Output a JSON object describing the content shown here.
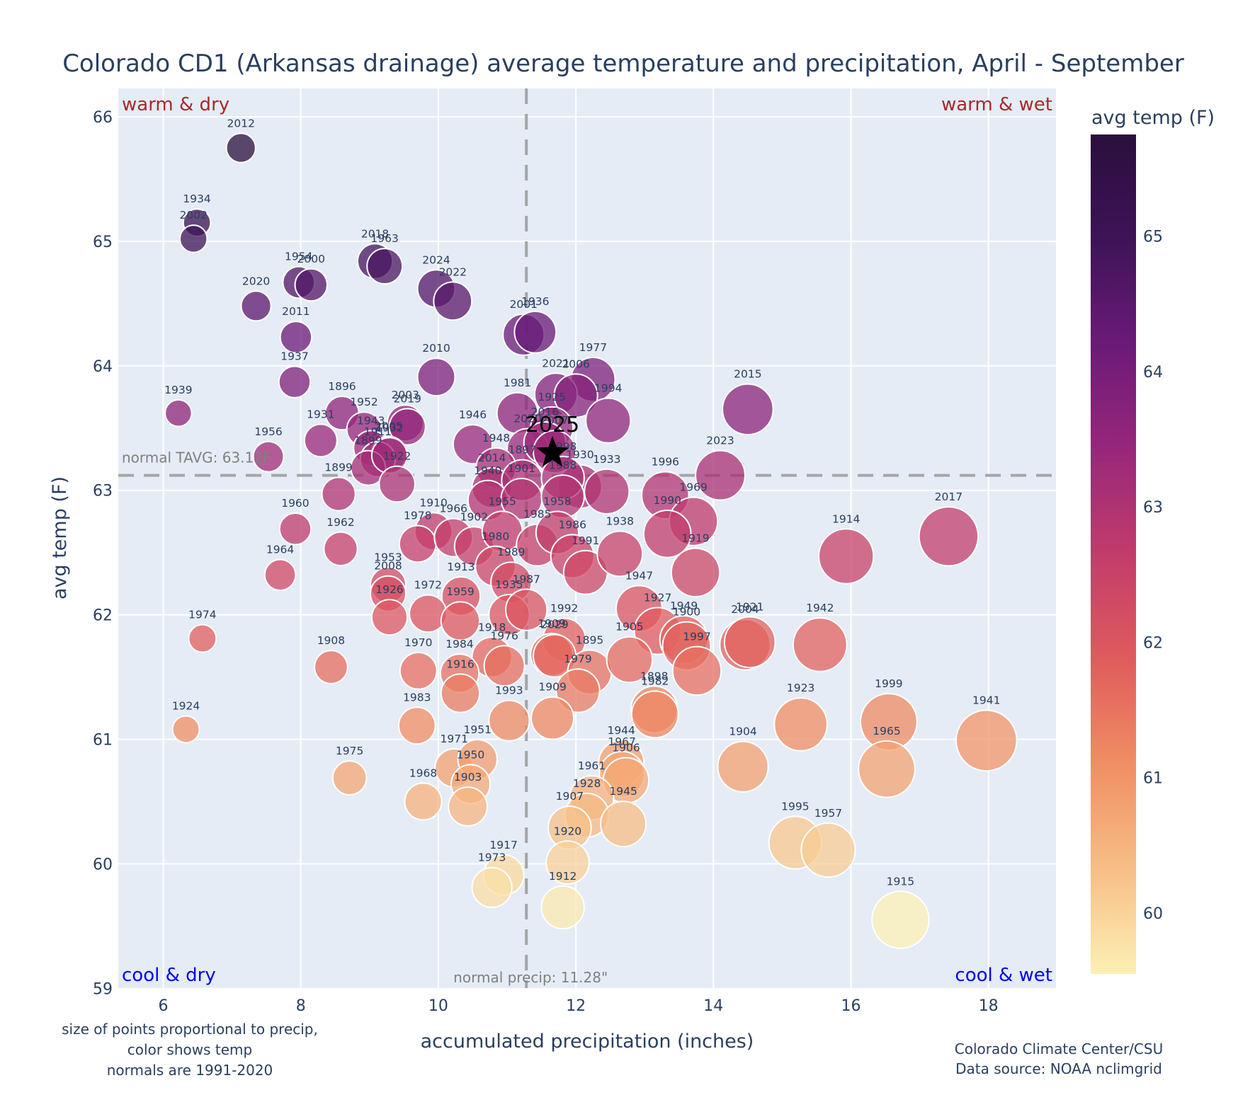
{
  "chart_data": {
    "type": "scatter",
    "title": "Colorado CD1 (Arkansas drainage) average temperature and precipitation, April - September",
    "xlabel": "accumulated precipitation (inches)",
    "ylabel": "avg temp (F)",
    "xlim": [
      5.35,
      19.0
    ],
    "ylim": [
      59,
      66.2
    ],
    "xticks": [
      6,
      8,
      10,
      12,
      14,
      16,
      18
    ],
    "yticks": [
      59,
      60,
      61,
      62,
      63,
      64,
      65,
      66
    ],
    "grid": true,
    "normals": {
      "precip": 11.28,
      "tavg": 63.12,
      "precip_label": "normal precip: 11.28\"",
      "tavg_label": "normal TAVG: 63.12F"
    },
    "quadrant_labels": {
      "top_left": "warm & dry",
      "top_right": "warm & wet",
      "bottom_left": "cool & dry",
      "bottom_right": "cool & wet"
    },
    "colorbar": {
      "title": "avg temp (F)",
      "range": [
        59.55,
        65.75
      ],
      "ticks": [
        60,
        61,
        62,
        63,
        64,
        65
      ],
      "colorscale": [
        "#fcf0b4",
        "#f7be86",
        "#f08e63",
        "#e05b5d",
        "#c23c6b",
        "#98277a",
        "#6b1a78",
        "#3e1357",
        "#2a0f3c"
      ]
    },
    "highlight": {
      "label": "2025",
      "precip": 11.66,
      "temp": 63.3,
      "marker": "star"
    },
    "points": [
      {
        "year": "2012",
        "precip": 7.13,
        "temp": 65.75
      },
      {
        "year": "1934",
        "precip": 6.49,
        "temp": 65.15
      },
      {
        "year": "2002",
        "precip": 6.44,
        "temp": 65.02
      },
      {
        "year": "1954",
        "precip": 7.97,
        "temp": 64.67
      },
      {
        "year": "2000",
        "precip": 8.15,
        "temp": 64.65
      },
      {
        "year": "2020",
        "precip": 7.35,
        "temp": 64.48
      },
      {
        "year": "2011",
        "precip": 7.93,
        "temp": 64.23
      },
      {
        "year": "2018",
        "precip": 9.08,
        "temp": 64.84
      },
      {
        "year": "1963",
        "precip": 9.22,
        "temp": 64.8
      },
      {
        "year": "2024",
        "precip": 9.97,
        "temp": 64.62
      },
      {
        "year": "2022",
        "precip": 10.21,
        "temp": 64.52
      },
      {
        "year": "2001",
        "precip": 11.24,
        "temp": 64.25
      },
      {
        "year": "1936",
        "precip": 11.41,
        "temp": 64.27
      },
      {
        "year": "1937",
        "precip": 7.91,
        "temp": 63.87
      },
      {
        "year": "2010",
        "precip": 9.97,
        "temp": 63.91
      },
      {
        "year": "1977",
        "precip": 12.25,
        "temp": 63.89
      },
      {
        "year": "2021",
        "precip": 11.71,
        "temp": 63.77
      },
      {
        "year": "2006",
        "precip": 12.0,
        "temp": 63.76
      },
      {
        "year": "1939",
        "precip": 6.22,
        "temp": 63.62
      },
      {
        "year": "1896",
        "precip": 8.6,
        "temp": 63.62
      },
      {
        "year": "1994",
        "precip": 12.47,
        "temp": 63.56
      },
      {
        "year": "2015",
        "precip": 14.5,
        "temp": 63.65
      },
      {
        "year": "1981",
        "precip": 11.15,
        "temp": 63.62
      },
      {
        "year": "1925",
        "precip": 11.65,
        "temp": 63.5
      },
      {
        "year": "1952",
        "precip": 8.92,
        "temp": 63.49
      },
      {
        "year": "2003",
        "precip": 9.52,
        "temp": 63.54
      },
      {
        "year": "2019",
        "precip": 9.55,
        "temp": 63.51
      },
      {
        "year": "1931",
        "precip": 8.29,
        "temp": 63.4
      },
      {
        "year": "1943",
        "precip": 9.02,
        "temp": 63.34
      },
      {
        "year": "2005",
        "precip": 9.28,
        "temp": 63.29
      },
      {
        "year": "1946",
        "precip": 10.5,
        "temp": 63.37
      },
      {
        "year": "2020b",
        "label": "2020",
        "precip": 11.3,
        "temp": 63.33
      },
      {
        "year": "2016",
        "precip": 11.55,
        "temp": 63.38
      },
      {
        "year": "1956",
        "precip": 7.53,
        "temp": 63.27
      },
      {
        "year": "1911",
        "precip": 9.12,
        "temp": 63.25
      },
      {
        "year": "1899",
        "precip": 8.98,
        "temp": 63.18
      },
      {
        "year": "1932",
        "precip": 9.29,
        "temp": 63.28
      },
      {
        "year": "1948",
        "precip": 10.84,
        "temp": 63.18
      },
      {
        "year": "2007",
        "precip": 11.69,
        "temp": 63.31
      },
      {
        "year": "2023",
        "precip": 14.1,
        "temp": 63.12
      },
      {
        "year": "1922",
        "precip": 9.4,
        "temp": 63.05
      },
      {
        "year": "2014",
        "precip": 10.78,
        "temp": 63.02
      },
      {
        "year": "1897",
        "precip": 11.22,
        "temp": 63.08
      },
      {
        "year": "1930",
        "precip": 12.06,
        "temp": 63.03
      },
      {
        "year": "1998",
        "precip": 11.81,
        "temp": 63.1
      },
      {
        "year": "1933",
        "precip": 12.45,
        "temp": 62.99
      },
      {
        "year": "1996",
        "precip": 13.3,
        "temp": 62.96
      },
      {
        "year": "1899b",
        "label": "1899",
        "precip": 8.55,
        "temp": 62.97
      },
      {
        "year": "1940",
        "precip": 10.72,
        "temp": 62.92
      },
      {
        "year": "1901",
        "precip": 11.21,
        "temp": 62.93
      },
      {
        "year": "1988",
        "precip": 11.81,
        "temp": 62.95
      },
      {
        "year": "1969",
        "precip": 13.71,
        "temp": 62.75
      },
      {
        "year": "1990",
        "precip": 13.33,
        "temp": 62.65
      },
      {
        "year": "2017",
        "precip": 17.42,
        "temp": 62.63
      },
      {
        "year": "1910",
        "precip": 9.93,
        "temp": 62.67
      },
      {
        "year": "1960",
        "precip": 7.92,
        "temp": 62.69
      },
      {
        "year": "1978",
        "precip": 9.7,
        "temp": 62.57
      },
      {
        "year": "1966",
        "precip": 10.22,
        "temp": 62.62
      },
      {
        "year": "1902",
        "precip": 10.52,
        "temp": 62.55
      },
      {
        "year": "1955",
        "precip": 10.93,
        "temp": 62.67
      },
      {
        "year": "1985",
        "precip": 11.44,
        "temp": 62.56
      },
      {
        "year": "1958",
        "precip": 11.73,
        "temp": 62.66
      },
      {
        "year": "1986",
        "precip": 11.95,
        "temp": 62.47
      },
      {
        "year": "1991",
        "precip": 12.14,
        "temp": 62.34
      },
      {
        "year": "1938",
        "precip": 12.64,
        "temp": 62.49
      },
      {
        "year": "1914",
        "precip": 15.93,
        "temp": 62.47
      },
      {
        "year": "1962",
        "precip": 8.58,
        "temp": 62.53
      },
      {
        "year": "1980",
        "precip": 10.83,
        "temp": 62.39
      },
      {
        "year": "1919",
        "precip": 13.74,
        "temp": 62.34
      },
      {
        "year": "1964",
        "precip": 7.7,
        "temp": 62.32
      },
      {
        "year": "1989",
        "precip": 11.06,
        "temp": 62.26
      },
      {
        "year": "1953",
        "precip": 9.27,
        "temp": 62.24
      },
      {
        "year": "2008",
        "precip": 9.27,
        "temp": 62.17
      },
      {
        "year": "1913",
        "precip": 10.33,
        "temp": 62.15
      },
      {
        "year": "1926",
        "precip": 9.29,
        "temp": 61.98
      },
      {
        "year": "1972",
        "precip": 9.85,
        "temp": 62.01
      },
      {
        "year": "1959",
        "precip": 10.32,
        "temp": 61.95
      },
      {
        "year": "1935",
        "precip": 11.03,
        "temp": 62.0
      },
      {
        "year": "1987",
        "precip": 11.28,
        "temp": 62.04
      },
      {
        "year": "1947",
        "precip": 12.92,
        "temp": 62.05
      },
      {
        "year": "1927",
        "precip": 13.19,
        "temp": 61.87
      },
      {
        "year": "1949",
        "precip": 13.57,
        "temp": 61.8
      },
      {
        "year": "1900",
        "precip": 13.61,
        "temp": 61.75
      },
      {
        "year": "1997",
        "precip": 13.76,
        "temp": 61.55
      },
      {
        "year": "2004",
        "precip": 14.46,
        "temp": 61.76
      },
      {
        "year": "1921",
        "precip": 14.53,
        "temp": 61.78
      },
      {
        "year": "1942",
        "precip": 15.55,
        "temp": 61.76
      },
      {
        "year": "1974",
        "precip": 6.57,
        "temp": 61.81
      },
      {
        "year": "1992",
        "precip": 11.83,
        "temp": 61.8
      },
      {
        "year": "1909b",
        "label": "1909",
        "precip": 11.65,
        "temp": 61.68
      },
      {
        "year": "2029",
        "label": "2029",
        "precip": 11.69,
        "temp": 61.67
      },
      {
        "year": "1918",
        "precip": 10.78,
        "temp": 61.66
      },
      {
        "year": "1976",
        "precip": 10.96,
        "temp": 61.59
      },
      {
        "year": "1895",
        "precip": 12.2,
        "temp": 61.54
      },
      {
        "year": "1905",
        "precip": 12.78,
        "temp": 61.64
      },
      {
        "year": "1908",
        "precip": 8.44,
        "temp": 61.58
      },
      {
        "year": "1970",
        "precip": 9.71,
        "temp": 61.55
      },
      {
        "year": "1984",
        "precip": 10.31,
        "temp": 61.53
      },
      {
        "year": "1916",
        "precip": 10.32,
        "temp": 61.37
      },
      {
        "year": "1979",
        "precip": 12.03,
        "temp": 61.39
      },
      {
        "year": "1898",
        "precip": 13.14,
        "temp": 61.24
      },
      {
        "year": "1982",
        "precip": 13.15,
        "temp": 61.2
      },
      {
        "year": "1923",
        "precip": 15.27,
        "temp": 61.12
      },
      {
        "year": "1999",
        "precip": 16.55,
        "temp": 61.14
      },
      {
        "year": "1941",
        "precip": 17.97,
        "temp": 60.99
      },
      {
        "year": "1983",
        "precip": 9.69,
        "temp": 61.11
      },
      {
        "year": "1993",
        "precip": 11.03,
        "temp": 61.15
      },
      {
        "year": "1909",
        "precip": 11.66,
        "temp": 61.17
      },
      {
        "year": "1924",
        "precip": 6.33,
        "temp": 61.08
      },
      {
        "year": "1971",
        "precip": 10.23,
        "temp": 60.77
      },
      {
        "year": "1951",
        "precip": 10.57,
        "temp": 60.84
      },
      {
        "year": "1950",
        "precip": 10.47,
        "temp": 60.64
      },
      {
        "year": "1903",
        "precip": 10.43,
        "temp": 60.46
      },
      {
        "year": "1944",
        "precip": 12.66,
        "temp": 60.81
      },
      {
        "year": "1967",
        "precip": 12.67,
        "temp": 60.72
      },
      {
        "year": "1906",
        "precip": 12.73,
        "temp": 60.67
      },
      {
        "year": "1904",
        "precip": 14.43,
        "temp": 60.78
      },
      {
        "year": "1965",
        "precip": 16.52,
        "temp": 60.76
      },
      {
        "year": "1975",
        "precip": 8.71,
        "temp": 60.69
      },
      {
        "year": "1968",
        "precip": 9.78,
        "temp": 60.5
      },
      {
        "year": "1961",
        "precip": 12.23,
        "temp": 60.53
      },
      {
        "year": "1928",
        "precip": 12.16,
        "temp": 60.39
      },
      {
        "year": "1945",
        "precip": 12.69,
        "temp": 60.32
      },
      {
        "year": "1907",
        "precip": 11.91,
        "temp": 60.29
      },
      {
        "year": "1995",
        "precip": 15.19,
        "temp": 60.17
      },
      {
        "year": "1957",
        "precip": 15.67,
        "temp": 60.11
      },
      {
        "year": "1920",
        "precip": 11.88,
        "temp": 60.01
      },
      {
        "year": "1917",
        "precip": 10.95,
        "temp": 59.91
      },
      {
        "year": "1973",
        "precip": 10.78,
        "temp": 59.81
      },
      {
        "year": "1912",
        "precip": 11.81,
        "temp": 59.65
      },
      {
        "year": "1915",
        "precip": 16.72,
        "temp": 59.55
      }
    ],
    "notes": {
      "left": [
        "size of points proportional to precip,",
        "color shows temp",
        "normals are 1991-2020"
      ],
      "right": [
        "Colorado Climate Center/CSU",
        "Data source: NOAA nclimgrid"
      ]
    }
  }
}
